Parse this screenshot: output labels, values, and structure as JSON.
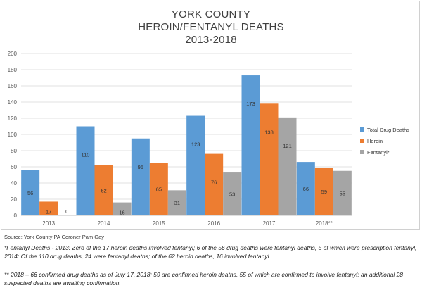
{
  "title_lines": [
    "YORK COUNTY",
    "HEROIN/FENTANYL DEATHS",
    "2013-2018"
  ],
  "source": "Source: York County PA Coroner Pam Gay",
  "notes": [
    "*Fentanyl Deaths - 2013: Zero of the 17 heroin deaths involved fentanyl; 6 of the 56 drug deaths were fentanyl deaths, 5 of which were prescription fentanyl; 2014: Of the 110 drug deaths, 24 were fentanyl deaths; of the 62 heroin deaths, 16 involved fentanyl.",
    "** 2018 – 66 confirmed drug deaths as of July 17, 2018; 59 are confirmed heroin deaths, 55 of which are confirmed to involve fentanyl; an additional 28 suspected deaths are awaiting confirmation."
  ],
  "chart_data": {
    "type": "bar",
    "title": "YORK COUNTY HEROIN/FENTANYL DEATHS 2013-2018",
    "categories": [
      "2013",
      "2014",
      "2015",
      "2016",
      "2017",
      "2018**"
    ],
    "series": [
      {
        "name": "Total Drug Deaths",
        "color": "#5b9bd5",
        "values": [
          56,
          110,
          95,
          123,
          173,
          66
        ]
      },
      {
        "name": "Heroin",
        "color": "#ed7d31",
        "values": [
          17,
          62,
          65,
          76,
          138,
          59
        ]
      },
      {
        "name": "Fentanyl*",
        "color": "#a5a5a5",
        "values": [
          0,
          16,
          31,
          53,
          121,
          55
        ]
      }
    ],
    "ylim": [
      0,
      200
    ],
    "yticks": [
      0,
      20,
      40,
      60,
      80,
      100,
      120,
      140,
      160,
      180,
      200
    ],
    "grid": true,
    "legend_position": "right",
    "data_labels": true
  }
}
